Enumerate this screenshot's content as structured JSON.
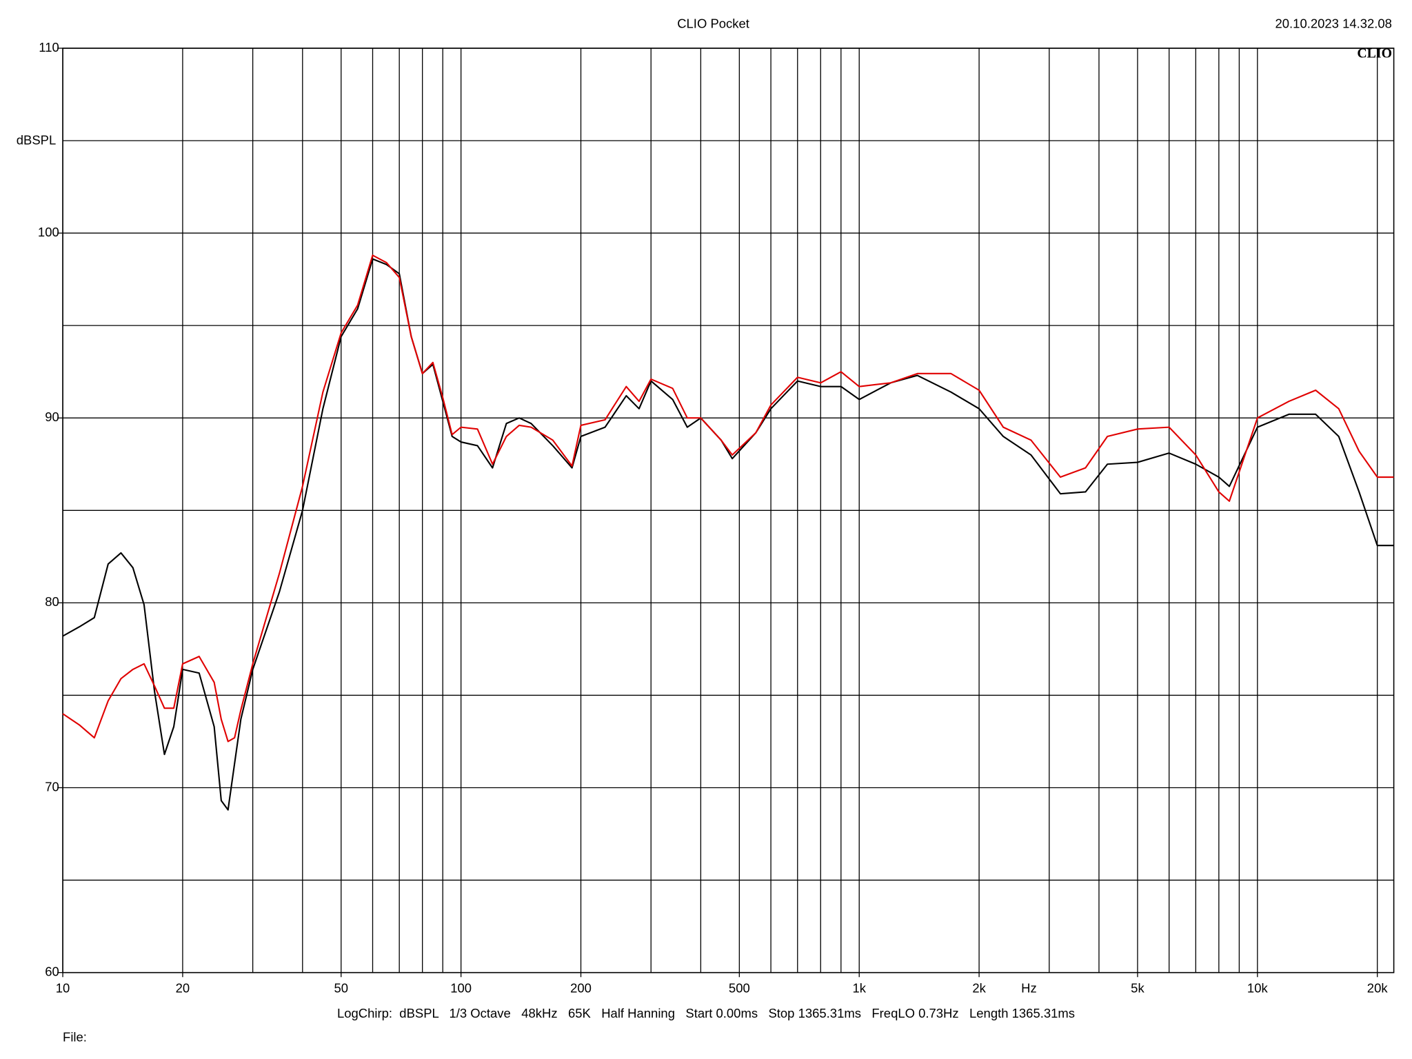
{
  "chart_data": {
    "type": "line",
    "title": "CLIO Pocket",
    "timestamp": "20.10.2023 14.32.08",
    "logo": "CLIO",
    "y_label": "dBSPL",
    "x_label": "Hz",
    "footer": "LogChirp:  dBSPL   1/3 Octave   48kHz   65K   Half Hanning   Start 0.00ms   Stop 1365.31ms   FreqLO 0.73Hz   Length 1365.31ms",
    "file_label": "File:",
    "x_scale": "log",
    "xlim": [
      10,
      22000
    ],
    "ylim": [
      60,
      110
    ],
    "xticks": [
      10,
      20,
      50,
      100,
      200,
      500,
      {
        "value": 1000,
        "label": "1k"
      },
      {
        "value": 2000,
        "label": "2k"
      },
      {
        "value": 5000,
        "label": "5k"
      },
      {
        "value": 10000,
        "label": "10k"
      },
      {
        "value": 20000,
        "label": "20k"
      }
    ],
    "yticks": [
      60,
      70,
      80,
      90,
      100,
      110
    ],
    "xgrid": [
      10,
      20,
      30,
      40,
      50,
      60,
      70,
      80,
      90,
      100,
      200,
      300,
      400,
      500,
      600,
      700,
      800,
      900,
      1000,
      2000,
      3000,
      4000,
      5000,
      6000,
      7000,
      8000,
      9000,
      10000,
      20000
    ],
    "ygrid": [
      60,
      65,
      70,
      75,
      80,
      85,
      90,
      95,
      100,
      105,
      110
    ],
    "grid": true,
    "x": [
      10,
      11,
      12,
      13,
      14,
      15,
      16,
      17,
      18,
      19,
      20,
      22,
      24,
      25,
      26,
      27,
      28,
      30,
      35,
      40,
      45,
      50,
      55,
      60,
      65,
      70,
      75,
      80,
      85,
      90,
      95,
      100,
      110,
      120,
      130,
      140,
      150,
      170,
      190,
      200,
      230,
      260,
      280,
      300,
      340,
      370,
      400,
      450,
      480,
      550,
      600,
      700,
      800,
      900,
      1000,
      1200,
      1400,
      1700,
      2000,
      2300,
      2700,
      3200,
      3700,
      4200,
      5000,
      6000,
      7000,
      8000,
      8500,
      10000,
      12000,
      14000,
      16000,
      18000,
      20000,
      22000
    ],
    "series": [
      {
        "color": "#000000",
        "values": [
          78.2,
          78.7,
          79.2,
          82.1,
          82.7,
          81.9,
          79.9,
          75.2,
          71.8,
          73.3,
          76.4,
          76.2,
          73.3,
          69.3,
          68.8,
          71.3,
          73.7,
          76.4,
          80.6,
          85.0,
          90.5,
          94.4,
          95.9,
          98.6,
          98.3,
          97.8,
          94.4,
          92.4,
          92.9,
          90.9,
          89.0,
          88.7,
          88.5,
          87.3,
          89.7,
          90.0,
          89.7,
          88.5,
          87.3,
          89.0,
          89.5,
          91.2,
          90.5,
          92.0,
          91.0,
          89.5,
          90.0,
          88.8,
          87.8,
          89.2,
          90.5,
          92.0,
          91.7,
          91.7,
          91.0,
          91.9,
          92.3,
          91.4,
          90.5,
          89.0,
          88.0,
          85.9,
          86.0,
          87.5,
          87.6,
          88.1,
          87.5,
          86.8,
          86.3,
          89.5,
          90.2,
          90.2,
          89.0,
          86.0,
          83.1,
          83.1
        ]
      },
      {
        "color": "#e00000",
        "values": [
          74.0,
          73.4,
          72.7,
          74.7,
          75.9,
          76.4,
          76.7,
          75.5,
          74.3,
          74.3,
          76.7,
          77.1,
          75.7,
          73.7,
          72.5,
          72.7,
          74.2,
          76.7,
          81.6,
          86.3,
          91.4,
          94.6,
          96.1,
          98.8,
          98.4,
          97.6,
          94.4,
          92.4,
          93.0,
          91.1,
          89.1,
          89.5,
          89.4,
          87.5,
          89.0,
          89.6,
          89.5,
          88.8,
          87.4,
          89.6,
          89.9,
          91.7,
          90.9,
          92.1,
          91.6,
          90.0,
          90.0,
          88.8,
          88.0,
          89.2,
          90.7,
          92.2,
          91.9,
          92.5,
          91.7,
          91.9,
          92.4,
          92.4,
          91.5,
          89.5,
          88.8,
          86.8,
          87.3,
          89.0,
          89.4,
          89.5,
          88.0,
          86.0,
          85.5,
          90.0,
          90.9,
          91.5,
          90.5,
          88.2,
          86.8,
          86.8
        ]
      }
    ]
  }
}
